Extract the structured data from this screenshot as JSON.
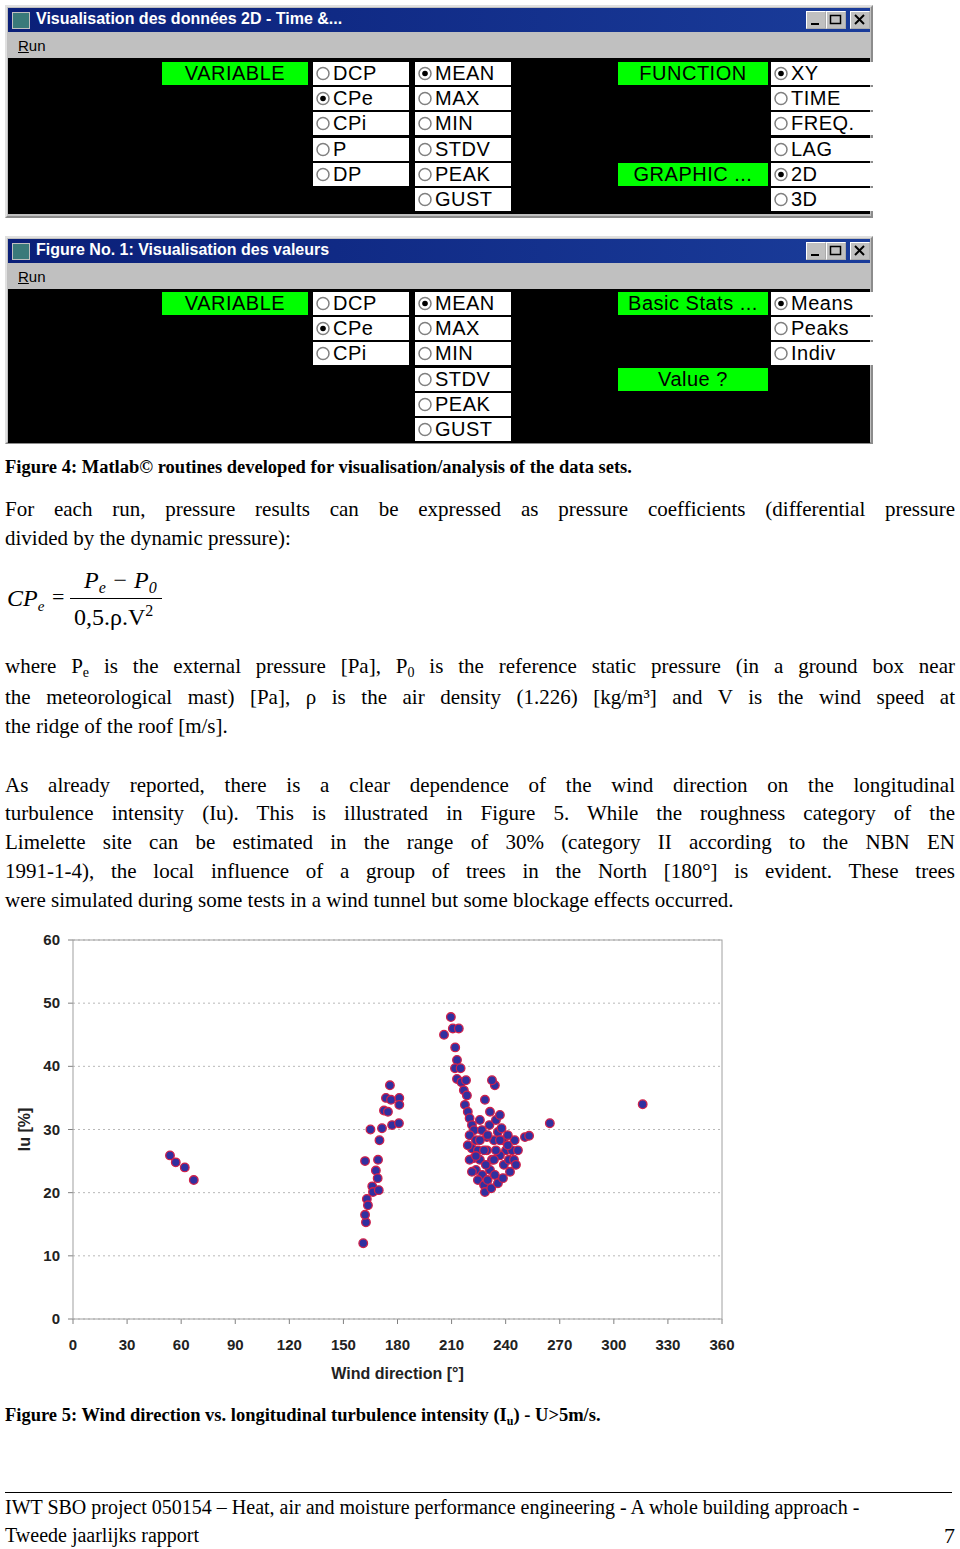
{
  "windows": [
    {
      "title": "Visualisation des données 2D - Time &...",
      "menu": "Run",
      "groups": [
        {
          "label": "VARIABLE",
          "options": [
            {
              "text": "DCP",
              "checked": false
            },
            {
              "text": "CPe",
              "checked": true
            },
            {
              "text": "CPi",
              "checked": false
            },
            {
              "text": "P",
              "checked": false
            },
            {
              "text": "DP",
              "checked": false
            }
          ]
        },
        {
          "options": [
            {
              "text": "MEAN",
              "checked": true
            },
            {
              "text": "MAX",
              "checked": false
            },
            {
              "text": "MIN",
              "checked": false
            },
            {
              "text": "STDV",
              "checked": false
            },
            {
              "text": "PEAK",
              "checked": false
            },
            {
              "text": "GUST",
              "checked": false
            }
          ]
        },
        {
          "label": "FUNCTION",
          "options": [
            {
              "text": "XY",
              "checked": true
            },
            {
              "text": "TIME",
              "checked": false
            },
            {
              "text": "FREQ.",
              "checked": false
            },
            {
              "text": "LAG",
              "checked": false
            }
          ]
        },
        {
          "label": "GRAPHIC ...",
          "options": [
            {
              "text": "2D",
              "checked": true
            },
            {
              "text": "3D",
              "checked": false
            }
          ]
        }
      ]
    },
    {
      "title": "Figure No. 1: Visualisation des valeurs",
      "menu": "Run",
      "groups": [
        {
          "label": "VARIABLE",
          "options": [
            {
              "text": "DCP",
              "checked": false
            },
            {
              "text": "CPe",
              "checked": true
            },
            {
              "text": "CPi",
              "checked": false
            }
          ]
        },
        {
          "options": [
            {
              "text": "MEAN",
              "checked": true
            },
            {
              "text": "MAX",
              "checked": false
            },
            {
              "text": "MIN",
              "checked": false
            },
            {
              "text": "STDV",
              "checked": false
            },
            {
              "text": "PEAK",
              "checked": false
            },
            {
              "text": "GUST",
              "checked": false
            }
          ]
        },
        {
          "label": "Basic Stats ...",
          "options": [
            {
              "text": "Means",
              "checked": true
            },
            {
              "text": "Peaks",
              "checked": false
            },
            {
              "text": "Indiv",
              "checked": false
            }
          ]
        },
        {
          "label": "Value ?",
          "options": []
        }
      ]
    }
  ],
  "figure4_caption": "Figure 4: Matlab© routines developed for visualisation/analysis of the data sets.",
  "paragraphs": [
    {
      "lines": [
        "For each run, pressure results can be expressed as pressure coefficients (differential pressure",
        "divided by the dynamic pressure):"
      ]
    },
    {
      "lines": [
        [
          "where P",
          {
            "sub": "e"
          },
          " is the external pressure [Pa], P",
          {
            "sub": "0"
          },
          " is the reference static pressure (in a ground box near"
        ],
        "the meteorological mast) [Pa], ρ is the air density (1.226) [kg/m³] and V is the wind speed at",
        "the ridge of the roof [m/s]."
      ]
    },
    {
      "lines": [
        "As already reported, there is a clear dependence of the wind direction on the longitudinal",
        "turbulence intensity (Iu). This is illustrated in Figure 5. While the roughness category of the",
        "Limelette site can be estimated in the range of 30% (category II according to the NBN EN",
        "1991-1-4), the local influence of a group of trees in the North [180°] is evident. These trees",
        "were simulated during some tests in a wind tunnel but some blockage effects occurred."
      ]
    }
  ],
  "equation": {
    "lhs": "CP",
    "lhs_sub": "e",
    "eq": "=",
    "numerator": [
      "P",
      {
        "sub": "e"
      },
      " − P",
      {
        "sub": "0"
      }
    ],
    "denominator": [
      "0,5.ρ.V",
      {
        "sup": "2"
      }
    ]
  },
  "chart_data": {
    "type": "scatter",
    "x_label": "Wind direction [°]",
    "y_label": "Iu [%]",
    "xlim": [
      0,
      360
    ],
    "ylim": [
      0,
      60
    ],
    "xticks": [
      0,
      30,
      60,
      90,
      120,
      150,
      180,
      210,
      240,
      270,
      300,
      330,
      360
    ],
    "yticks": [
      0,
      10,
      20,
      30,
      40,
      50,
      60
    ],
    "grid": true,
    "color": "#3030a0",
    "marker": "circle",
    "x": [
      53.8,
      57,
      62,
      67,
      161,
      162.5,
      162,
      163,
      163.6,
      162,
      165,
      166,
      166.4,
      168,
      169,
      169.6,
      169.2,
      170,
      171.4,
      172.5,
      173.6,
      174.7,
      175.8,
      176.4,
      177,
      181,
      181,
      180.8,
      209.6,
      210.7,
      214,
      205.8,
      212,
      213,
      211.9,
      215,
      213,
      215.5,
      218,
      216.8,
      218.5,
      217.4,
      219,
      220,
      221.3,
      222.4,
      220,
      223.5,
      221.3,
      224.6,
      222.4,
      225.7,
      223.5,
      227,
      224.6,
      228,
      228.5,
      230,
      231.3,
      232.4,
      229.6,
      233.5,
      231,
      234.6,
      236.8,
      235.7,
      238.5,
      240.2,
      236.8,
      239,
      241.8,
      243.5,
      245,
      242.4,
      234,
      232,
      235.7,
      238.5,
      241.2,
      244.6,
      245.7,
      246.8,
      241.2,
      237.7,
      229.6,
      226.8,
      225.7,
      228.5,
      231.3,
      234,
      232.4,
      219,
      220,
      221.3,
      223.5,
      225.7,
      228,
      229,
      234.6,
      236.8,
      233.5,
      230,
      250.7,
      253,
      264.5,
      316
    ],
    "values": [
      25.9,
      24.8,
      24,
      22,
      12,
      15.3,
      16.5,
      19,
      18,
      25,
      30,
      21,
      20.1,
      23.5,
      22.3,
      20.4,
      25.2,
      28.3,
      30.2,
      33,
      35,
      32.8,
      37,
      34.7,
      30.7,
      35,
      33.9,
      31,
      47.8,
      46,
      46,
      45,
      43,
      41,
      39.7,
      39.7,
      38,
      37.5,
      37.8,
      36.2,
      35.4,
      33.9,
      32.8,
      31.8,
      30.7,
      29.9,
      29.1,
      28.3,
      27,
      26.7,
      25.5,
      25.2,
      23.6,
      22.8,
      22,
      21.2,
      20.1,
      22,
      23.6,
      25.2,
      26.7,
      28.3,
      30.7,
      31.5,
      32.3,
      29.6,
      28.3,
      26.7,
      25.9,
      24.4,
      25.2,
      26.7,
      28.3,
      23.3,
      22.8,
      20.7,
      21.5,
      22.3,
      27.5,
      25.2,
      24.4,
      26.7,
      29.1,
      30.2,
      28.8,
      29.9,
      31.5,
      34.7,
      32.8,
      37,
      37.8,
      27.5,
      25.2,
      23.3,
      25.8,
      28.3,
      26.7,
      24.4,
      26.7,
      28.3,
      25.2,
      29.1,
      28.8,
      29,
      31,
      34
    ]
  },
  "figure5_caption": [
    "Figure 5: Wind direction vs. longitudinal turbulence intensity (I",
    {
      "sub": "u"
    },
    ") - U>5m/s."
  ],
  "footer": {
    "lines": [
      "IWT SBO project 050154 – Heat, air and moisture performance engineering - A whole building approach -",
      "Tweede jaarlijks rapport"
    ],
    "page": "7"
  }
}
